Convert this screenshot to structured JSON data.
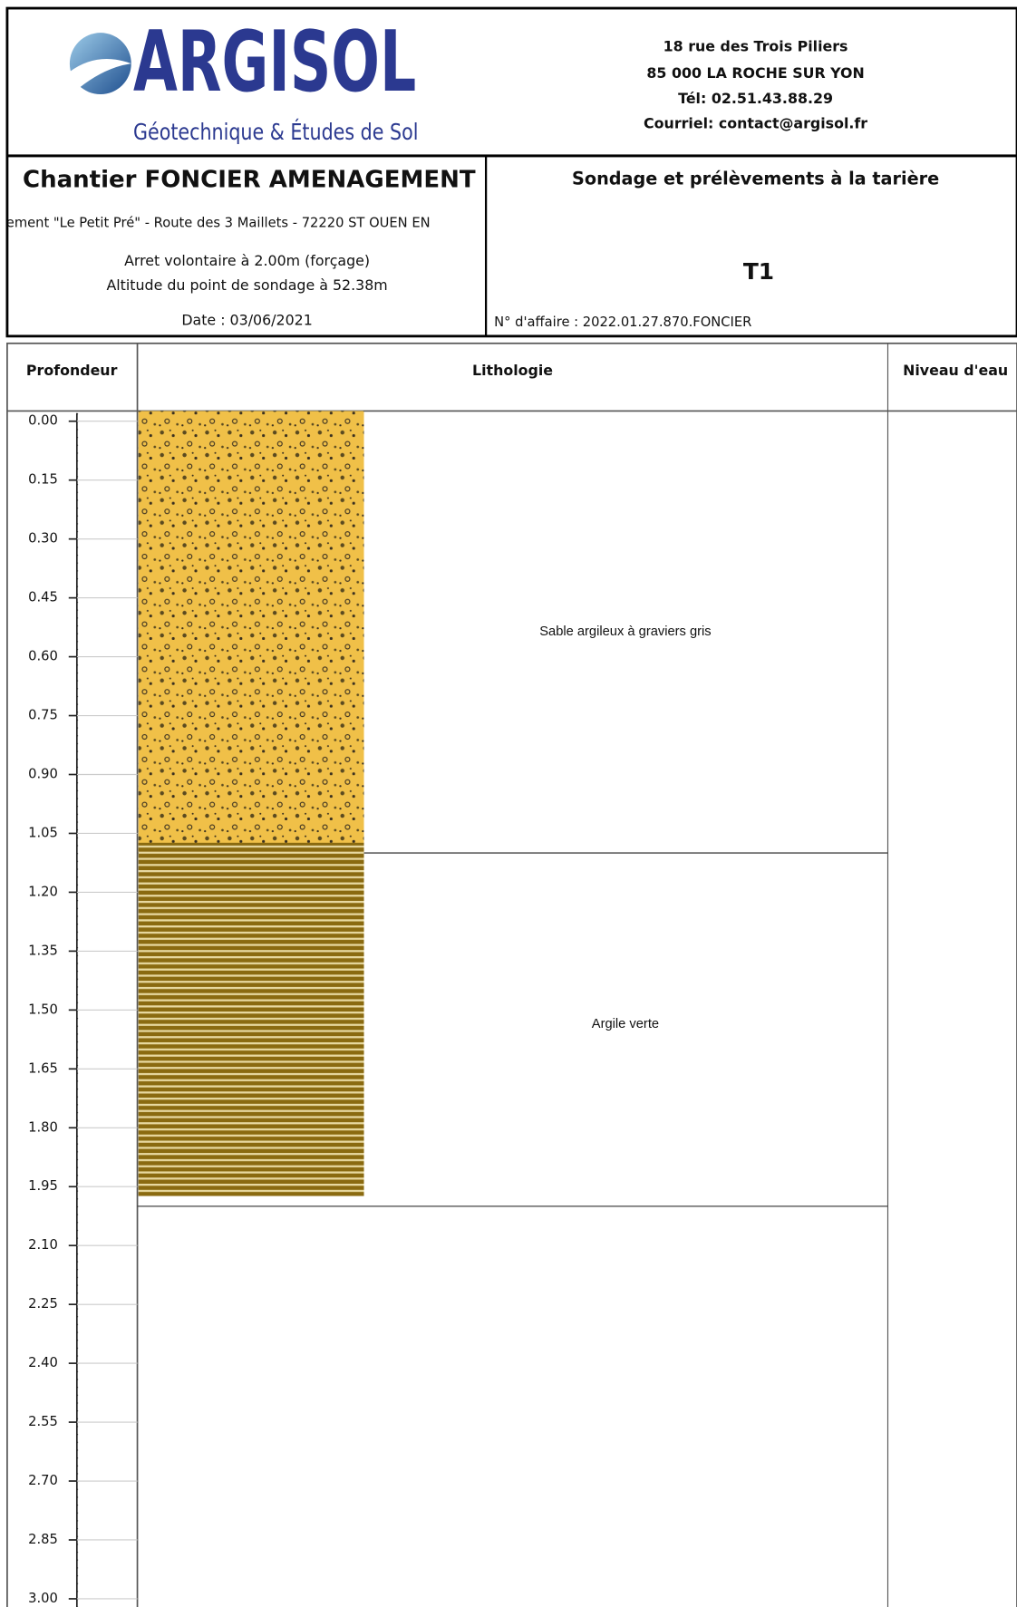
{
  "header": {
    "logo": {
      "name": "ARGISOL",
      "tagline": "Géotechnique & Études de Sol"
    },
    "address": [
      "18 rue des Trois Piliers",
      "85 000 LA ROCHE SUR YON",
      "Tél: 02.51.43.88.29",
      "Courriel: contact@argisol.fr"
    ]
  },
  "site": {
    "title": "Chantier FONCIER AMENAGEMENT",
    "location": "ement \"Le Petit Pré\" - Route des 3 Maillets - 72220 ST OUEN EN",
    "stop": "Arret volontaire à 2.00m (forçage)",
    "altitude": "Altitude du point de sondage à 52.38m",
    "date": "Date :  03/06/2021"
  },
  "survey": {
    "title": "Sondage et prélèvements à la tarière",
    "id": "T1",
    "reference": "N° d'affaire : 2022.01.27.870.FONCIER"
  },
  "log": {
    "columns": [
      "Profondeur",
      "Lithologie",
      "Niveau d'eau"
    ],
    "depth_lim": [
      0,
      3
    ],
    "depth_ticks": [
      {
        "value": 0,
        "label": "0.00"
      },
      {
        "value": 0.15,
        "label": "0.15"
      },
      {
        "value": 0.3,
        "label": "0.30"
      },
      {
        "value": 0.45,
        "label": "0.45"
      },
      {
        "value": 0.6,
        "label": "0.60"
      },
      {
        "value": 0.75,
        "label": "0.75"
      },
      {
        "value": 0.9,
        "label": "0.90"
      },
      {
        "value": 1.05,
        "label": "1.05"
      },
      {
        "value": 1.2,
        "label": "1.20"
      },
      {
        "value": 1.35,
        "label": "1.35"
      },
      {
        "value": 1.5,
        "label": "1.50"
      },
      {
        "value": 1.65,
        "label": "1.65"
      },
      {
        "value": 1.8,
        "label": "1.80"
      },
      {
        "value": 1.95,
        "label": "1.95"
      },
      {
        "value": 2.1,
        "label": "2.10"
      },
      {
        "value": 2.25,
        "label": "2.25"
      },
      {
        "value": 2.4,
        "label": "2.40"
      },
      {
        "value": 2.55,
        "label": "2.55"
      },
      {
        "value": 2.7,
        "label": "2.70"
      },
      {
        "value": 2.85,
        "label": "2.85"
      },
      {
        "value": 3,
        "label": "3.00"
      }
    ],
    "layers": [
      {
        "top": 0,
        "bottom": 1.1,
        "description": "Sable argileux à graviers gris",
        "pattern": "gravel",
        "color": "#f0c048"
      },
      {
        "top": 1.1,
        "bottom": 2,
        "description": "Argile verte",
        "pattern": "stripes",
        "color": "#8a6a10"
      }
    ]
  }
}
